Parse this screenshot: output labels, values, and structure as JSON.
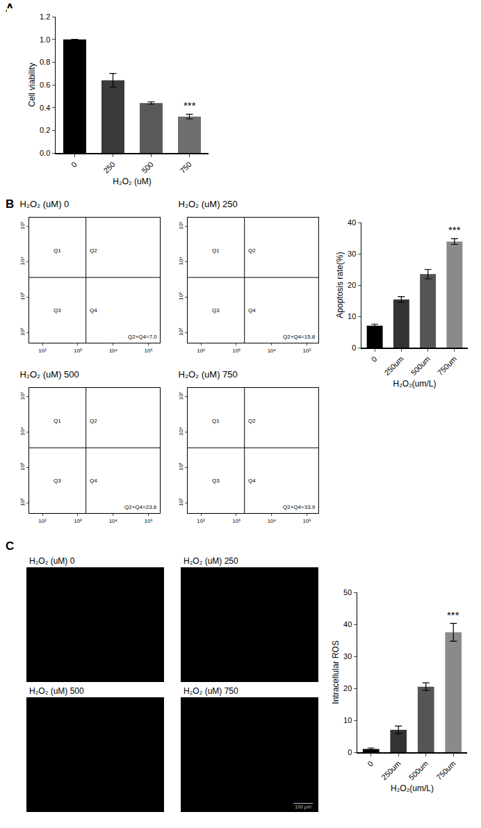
{
  "chart_data": [
    {
      "panel": "A",
      "type": "bar",
      "categories": [
        "0",
        "250",
        "500",
        "750"
      ],
      "values": [
        1.0,
        0.64,
        0.44,
        0.32
      ],
      "errors": [
        0,
        0.06,
        0.01,
        0.02
      ],
      "colors": [
        "#000000",
        "#3a3a3a",
        "#595959",
        "#6e6e6e"
      ],
      "x_label": "H₂O₂ (uM)",
      "y_label": "Cell viability",
      "ylim": [
        0,
        1.2
      ],
      "yticks": [
        {
          "value": 0,
          "label": "0.0"
        },
        {
          "value": 0.2,
          "label": "0.2"
        },
        {
          "value": 0.4,
          "label": "0.4"
        },
        {
          "value": 0.6,
          "label": "0.6"
        },
        {
          "value": 0.8,
          "label": "0.8"
        },
        {
          "value": 1.0,
          "label": "1.0"
        },
        {
          "value": 1.2,
          "label": "1.2"
        }
      ],
      "annotations": [
        {
          "category": "750",
          "text": "***"
        }
      ]
    },
    {
      "panel": "B",
      "type": "flow_cytometry",
      "title": "H₂O₂ (uM) 0",
      "quadrants": [
        "Q1",
        "Q2",
        "Q3",
        "Q4"
      ],
      "annotation": "Q2+Q4=7.0",
      "gates": {
        "x": 1700,
        "y": 3600
      },
      "log": true,
      "xlim": [
        42,
        210000
      ],
      "ylim": [
        52,
        175000
      ],
      "xticks": [
        {
          "value": 100,
          "label": "10²"
        },
        {
          "value": 1000,
          "label": "10³"
        },
        {
          "value": 10000,
          "label": "10⁴"
        },
        {
          "value": 100000,
          "label": "10⁵"
        }
      ],
      "yticks": [
        {
          "value": 100,
          "label": "10²"
        },
        {
          "value": 1000,
          "label": "10³"
        },
        {
          "value": 10000,
          "label": "10⁴"
        },
        {
          "value": 100000,
          "label": "10⁵"
        }
      ]
    },
    {
      "type": "flow_cytometry",
      "title": "H₂O₂ (uM) 250",
      "quadrants": [
        "Q1",
        "Q2",
        "Q3",
        "Q4"
      ],
      "annotation": "Q2+Q4=15.8",
      "gates": {
        "x": 1700,
        "y": 3600
      },
      "log": true,
      "xlim": [
        42,
        210000
      ],
      "ylim": [
        52,
        175000
      ],
      "xticks": [
        {
          "value": 100,
          "label": "10²"
        },
        {
          "value": 1000,
          "label": "10³"
        },
        {
          "value": 10000,
          "label": "10⁴"
        },
        {
          "value": 100000,
          "label": "10⁵"
        }
      ],
      "yticks": [
        {
          "value": 100,
          "label": "10²"
        },
        {
          "value": 1000,
          "label": "10³"
        },
        {
          "value": 10000,
          "label": "10⁴"
        },
        {
          "value": 100000,
          "label": "10⁵"
        }
      ]
    },
    {
      "type": "flow_cytometry",
      "title": "H₂O₂ (uM) 500",
      "quadrants": [
        "Q1",
        "Q2",
        "Q3",
        "Q4"
      ],
      "annotation": "Q2+Q4=23.6",
      "gates": {
        "x": 1700,
        "y": 3600
      },
      "log": true,
      "xlim": [
        42,
        210000
      ],
      "ylim": [
        52,
        175000
      ],
      "xticks": [
        {
          "value": 100,
          "label": "10²"
        },
        {
          "value": 1000,
          "label": "10³"
        },
        {
          "value": 10000,
          "label": "10⁴"
        },
        {
          "value": 100000,
          "label": "10⁵"
        }
      ],
      "yticks": [
        {
          "value": 100,
          "label": "10²"
        },
        {
          "value": 1000,
          "label": "10³"
        },
        {
          "value": 10000,
          "label": "10⁴"
        },
        {
          "value": 100000,
          "label": "10⁵"
        }
      ]
    },
    {
      "type": "flow_cytometry",
      "title": "H₂O₂ (uM) 750",
      "quadrants": [
        "Q1",
        "Q2",
        "Q3",
        "Q4"
      ],
      "annotation": "Q2+Q4=33.9",
      "gates": {
        "x": 1700,
        "y": 3600
      },
      "log": true,
      "xlim": [
        42,
        210000
      ],
      "ylim": [
        52,
        175000
      ],
      "xticks": [
        {
          "value": 100,
          "label": "10²"
        },
        {
          "value": 1000,
          "label": "10³"
        },
        {
          "value": 10000,
          "label": "10⁴"
        },
        {
          "value": 100000,
          "label": "10⁵"
        }
      ],
      "yticks": [
        {
          "value": 100,
          "label": "10²"
        },
        {
          "value": 1000,
          "label": "10³"
        },
        {
          "value": 10000,
          "label": "10⁴"
        },
        {
          "value": 100000,
          "label": "10⁵"
        }
      ]
    },
    {
      "type": "bar",
      "categories": [
        "0",
        "250um",
        "500um",
        "750um"
      ],
      "values": [
        7.0,
        15.4,
        23.5,
        33.9
      ],
      "errors": [
        0.5,
        0.9,
        1.5,
        0.9
      ],
      "colors": [
        "#000000",
        "#333333",
        "#555555",
        "#8a8a8a"
      ],
      "x_label": "H₂O₂(um/L)",
      "y_label": "Apoptosis rate(%)",
      "ylim": [
        0,
        40
      ],
      "yticks": [
        0,
        10,
        20,
        30,
        40
      ],
      "annotations": [
        {
          "category": "750um",
          "text": "***"
        }
      ]
    },
    {
      "panel": "C",
      "type": "image",
      "title": "H₂O₂ (uM) 0"
    },
    {
      "type": "image",
      "title": "H₂O₂ (uM) 250"
    },
    {
      "type": "image",
      "title": "H₂O₂ (uM) 500"
    },
    {
      "type": "image",
      "title": "H₂O₂ (uM) 750",
      "scale_bar": "100 μm"
    },
    {
      "type": "bar",
      "categories": [
        "0",
        "250um",
        "500um",
        "750um"
      ],
      "values": [
        1,
        7,
        20.5,
        37.5
      ],
      "errors": [
        0.3,
        1.2,
        1.2,
        2.8
      ],
      "colors": [
        "#000000",
        "#333333",
        "#555555",
        "#8a8a8a"
      ],
      "x_label": "H₂O₂(um/L)",
      "y_label": "Intracellular ROS",
      "ylim": [
        0,
        50
      ],
      "yticks": [
        0,
        10,
        20,
        30,
        40,
        50
      ],
      "annotations": [
        {
          "category": "750um",
          "text": "***"
        }
      ]
    }
  ]
}
